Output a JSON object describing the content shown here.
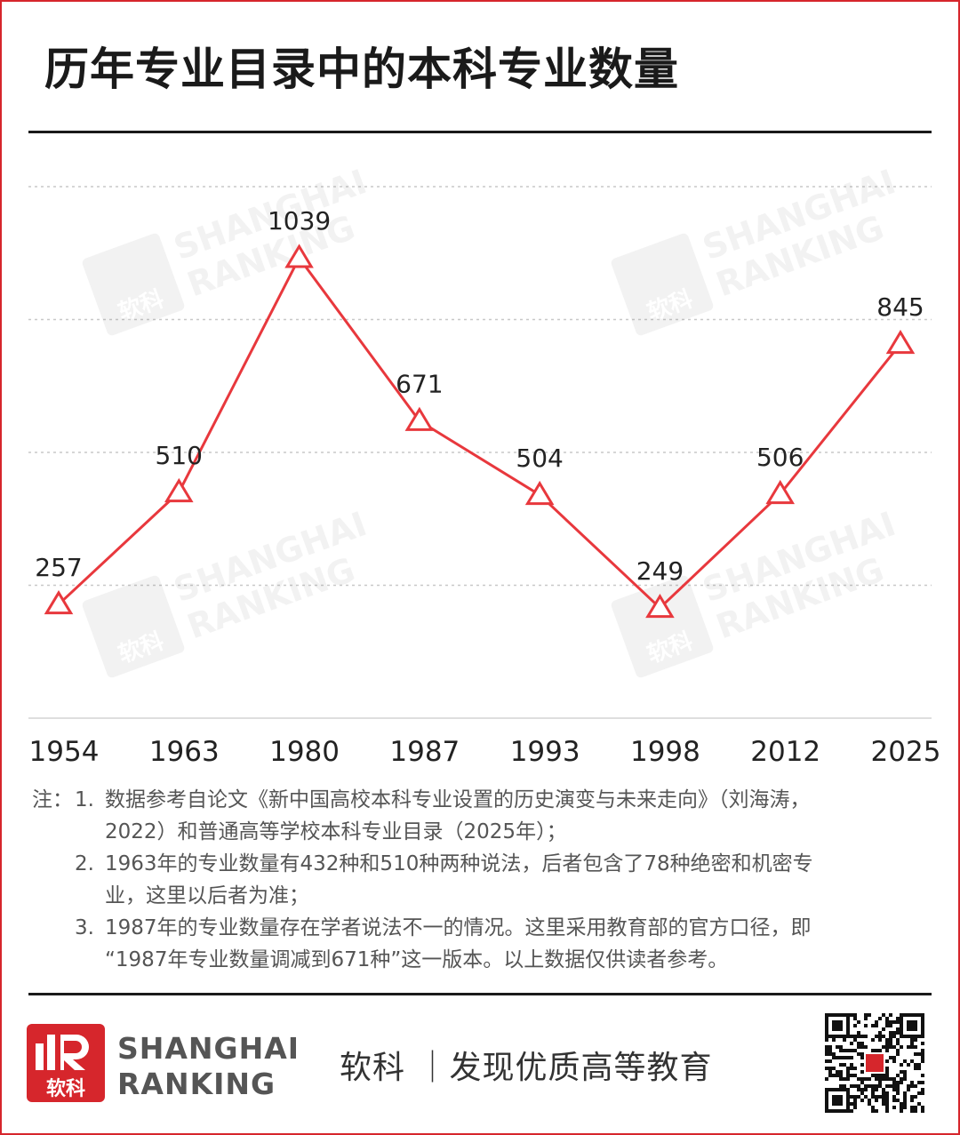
{
  "title": "历年专业目录中的本科专业数量",
  "chart_data": {
    "type": "line",
    "categories": [
      "1954",
      "1963",
      "1980",
      "1987",
      "1993",
      "1998",
      "2012",
      "2025"
    ],
    "values": [
      257,
      510,
      1039,
      671,
      504,
      249,
      506,
      845
    ],
    "data_labels": [
      "257",
      "510",
      "1039",
      "671",
      "504",
      "249",
      "506",
      "845"
    ],
    "marker": "hollow-triangle",
    "line_color": "#e8383d",
    "grid": "horizontal-dotted",
    "ylim": [
      0,
      1200
    ]
  },
  "notes": {
    "prefix": "注：",
    "items": [
      {
        "num": "1.",
        "lines": [
          "数据参考自论文《新中国高校本科专业设置的历史演变与未来走向》（刘海涛，",
          "2022）和普通高等学校本科专业目录（2025年）；"
        ]
      },
      {
        "num": "2.",
        "lines": [
          "1963年的专业数量有432种和510种两种说法，后者包含了78种绝密和机密专",
          "业，这里以后者为准；"
        ]
      },
      {
        "num": "3.",
        "lines": [
          "1987年的专业数量存在学者说法不一的情况。这里采用教育部的官方口径，即",
          "“1987年专业数量调减到671种”这一版本。以上数据仅供读者参考。"
        ]
      }
    ]
  },
  "watermark": {
    "line1": "SHANGHAI",
    "line2": "RANKING",
    "mark": "软科"
  },
  "footer": {
    "logo_text": "软科",
    "brand_line1": "SHANGHAI",
    "brand_line2": "RANKING",
    "slogan": "软科 ｜发现优质高等教育",
    "qr_icon": "qr-code-icon"
  },
  "colors": {
    "accent": "#d6262c",
    "line": "#e8383d",
    "text": "#222222"
  }
}
